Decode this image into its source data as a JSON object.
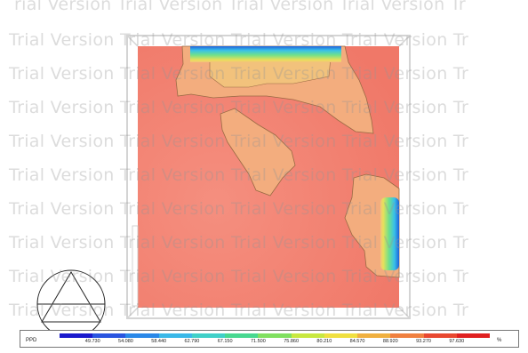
{
  "watermark": {
    "text": "Trial Version",
    "rows": [
      "rial Version Trial Version Trial Version Trial Version Tr",
      "Trial Version Trial Version Trial Version Trial Version Tr",
      "Trial Version Trial Version Trial Version Trial Version Tr",
      "Trial Version Trial Version Trial Version Trial Version Tr",
      "Trial Version Trial Version Trial Version Trial Version Tr",
      "Trial Version Trial Version Trial Version Trial Version Tr",
      "Trial Version Trial Version Trial Version Trial Version Tr",
      "Trial Version Trial Version Trial Version Trial Version Tr",
      "Trial Version Trial Version Trial Version Trial Version Tr",
      "Trial Version Trial Version Trial Version Trial Version Tr"
    ]
  },
  "legend": {
    "title": "PPD",
    "unit": "%",
    "values": [
      "49.730",
      "54.080",
      "58.440",
      "62.790",
      "67.150",
      "71.500",
      "75.860",
      "80.210",
      "84.570",
      "88.920",
      "93.270",
      "97.630"
    ],
    "colors": [
      "#1a1acc",
      "#2a55e0",
      "#2a88e8",
      "#3ab8e8",
      "#40d0c8",
      "#48d890",
      "#80e060",
      "#c8e840",
      "#f0e040",
      "#f0b040",
      "#f08040",
      "#e84830",
      "#e02020"
    ]
  },
  "colors": {
    "field": "#f4877a",
    "contour": "#f3a77a",
    "contour_line": "#9a6a44",
    "cold": "#3ab8e8",
    "room_border": "#d8d8d8"
  }
}
